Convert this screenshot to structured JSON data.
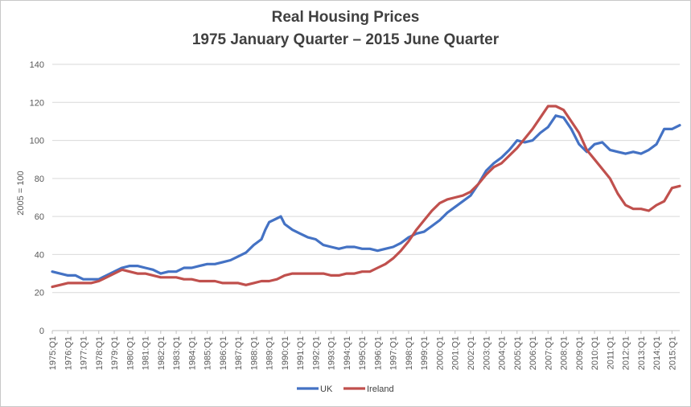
{
  "chart_data": {
    "type": "line",
    "title": "Real Housing  Prices",
    "subtitle": "1975 January  Quarter – 2015 June Quarter",
    "xlabel": "",
    "ylabel": "2005 = 100",
    "ylim": [
      0,
      140
    ],
    "yticks": [
      0,
      20,
      40,
      60,
      80,
      100,
      120,
      140
    ],
    "grid": true,
    "legend_position": "bottom",
    "categories": [
      "1975:Q1",
      "1976:Q1",
      "1977:Q1",
      "1978:Q1",
      "1979:Q1",
      "1980:Q1",
      "1981:Q1",
      "1982:Q1",
      "1983:Q1",
      "1984:Q1",
      "1985:Q1",
      "1986:Q1",
      "1987:Q1",
      "1988:Q1",
      "1989:Q1",
      "1990:Q1",
      "1991:Q1",
      "1992:Q1",
      "1993:Q1",
      "1994:Q1",
      "1995:Q1",
      "1996:Q1",
      "1997:Q1",
      "1998:Q1",
      "1999:Q1",
      "2000:Q1",
      "2001:Q1",
      "2002:Q1",
      "2003:Q1",
      "2004:Q1",
      "2005:Q1",
      "2006:Q1",
      "2007:Q1",
      "2008:Q1",
      "2009:Q1",
      "2010:Q1",
      "2011:Q1",
      "2012:Q1",
      "2013:Q1",
      "2014:Q1",
      "2015:Q1"
    ],
    "series": [
      {
        "name": "UK",
        "color": "#4472c4",
        "x": [
          1975.0,
          1975.5,
          1976.0,
          1976.5,
          1977.0,
          1977.5,
          1978.0,
          1978.5,
          1979.0,
          1979.5,
          1980.0,
          1980.5,
          1981.0,
          1981.5,
          1982.0,
          1982.5,
          1983.0,
          1983.5,
          1984.0,
          1984.5,
          1985.0,
          1985.5,
          1986.0,
          1986.5,
          1987.0,
          1987.5,
          1988.0,
          1988.5,
          1988.75,
          1989.0,
          1989.5,
          1989.75,
          1990.0,
          1990.5,
          1991.0,
          1991.5,
          1992.0,
          1992.5,
          1993.0,
          1993.5,
          1994.0,
          1994.5,
          1995.0,
          1995.5,
          1996.0,
          1996.5,
          1997.0,
          1997.5,
          1998.0,
          1998.5,
          1999.0,
          1999.5,
          2000.0,
          2000.5,
          2001.0,
          2001.5,
          2002.0,
          2002.5,
          2003.0,
          2003.5,
          2004.0,
          2004.5,
          2005.0,
          2005.5,
          2006.0,
          2006.5,
          2007.0,
          2007.5,
          2008.0,
          2008.5,
          2009.0,
          2009.5,
          2010.0,
          2010.5,
          2011.0,
          2011.5,
          2012.0,
          2012.5,
          2013.0,
          2013.5,
          2014.0,
          2014.5,
          2015.0,
          2015.5
        ],
        "values": [
          31,
          30,
          29,
          29,
          27,
          27,
          27,
          29,
          31,
          33,
          34,
          34,
          33,
          32,
          30,
          31,
          31,
          33,
          33,
          34,
          35,
          35,
          36,
          37,
          39,
          41,
          45,
          48,
          53,
          57,
          59,
          60,
          56,
          53,
          51,
          49,
          48,
          45,
          44,
          43,
          44,
          44,
          43,
          43,
          42,
          43,
          44,
          46,
          49,
          51,
          52,
          55,
          58,
          62,
          65,
          68,
          71,
          77,
          84,
          88,
          91,
          95,
          100,
          99,
          100,
          104,
          107,
          113,
          112,
          106,
          98,
          94,
          98,
          99,
          95,
          94,
          93,
          94,
          93,
          95,
          98,
          106,
          106,
          108
        ]
      },
      {
        "name": "Ireland",
        "color": "#c0504d",
        "x": [
          1975.0,
          1975.5,
          1976.0,
          1976.5,
          1977.0,
          1977.5,
          1978.0,
          1978.5,
          1979.0,
          1979.5,
          1980.0,
          1980.5,
          1981.0,
          1981.5,
          1982.0,
          1982.5,
          1983.0,
          1983.5,
          1984.0,
          1984.5,
          1985.0,
          1985.5,
          1986.0,
          1986.5,
          1987.0,
          1987.5,
          1988.0,
          1988.5,
          1989.0,
          1989.5,
          1990.0,
          1990.5,
          1991.0,
          1991.5,
          1992.0,
          1992.5,
          1993.0,
          1993.5,
          1994.0,
          1994.5,
          1995.0,
          1995.5,
          1996.0,
          1996.5,
          1997.0,
          1997.5,
          1998.0,
          1998.5,
          1999.0,
          1999.5,
          2000.0,
          2000.5,
          2001.0,
          2001.5,
          2002.0,
          2002.5,
          2003.0,
          2003.5,
          2004.0,
          2004.5,
          2005.0,
          2005.5,
          2006.0,
          2006.5,
          2007.0,
          2007.5,
          2008.0,
          2008.5,
          2009.0,
          2009.5,
          2010.0,
          2010.5,
          2011.0,
          2011.5,
          2012.0,
          2012.5,
          2013.0,
          2013.5,
          2014.0,
          2014.5,
          2015.0,
          2015.5
        ],
        "values": [
          23,
          24,
          25,
          25,
          25,
          25,
          26,
          28,
          30,
          32,
          31,
          30,
          30,
          29,
          28,
          28,
          28,
          27,
          27,
          26,
          26,
          26,
          25,
          25,
          25,
          24,
          25,
          26,
          26,
          27,
          29,
          30,
          30,
          30,
          30,
          30,
          29,
          29,
          30,
          30,
          31,
          31,
          33,
          35,
          38,
          42,
          47,
          53,
          58,
          63,
          67,
          69,
          70,
          71,
          73,
          77,
          82,
          86,
          88,
          92,
          96,
          101,
          106,
          112,
          118,
          118,
          116,
          110,
          104,
          95,
          90,
          85,
          80,
          72,
          66,
          64,
          64,
          63,
          66,
          68,
          75,
          76
        ]
      }
    ]
  }
}
